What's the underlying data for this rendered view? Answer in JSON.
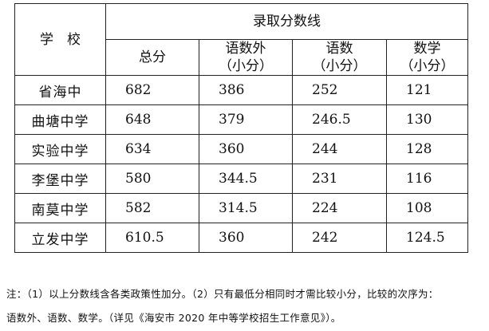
{
  "table": {
    "school_header": "学　校",
    "group_header": "录取分数线",
    "columns": [
      "总分",
      "语数外\n（小分）",
      "语数\n（小分）",
      "数学\n（小分）"
    ],
    "rows": [
      {
        "school": "省海中",
        "values": [
          "682",
          "386",
          "252",
          "121"
        ]
      },
      {
        "school": "曲塘中学",
        "values": [
          "648",
          "379",
          "246.5",
          "130"
        ]
      },
      {
        "school": "实验中学",
        "values": [
          "634",
          "360",
          "244",
          "128"
        ]
      },
      {
        "school": "李堡中学",
        "values": [
          "580",
          "344.5",
          "231",
          "116"
        ]
      },
      {
        "school": "南莫中学",
        "values": [
          "582",
          "314.5",
          "224",
          "108"
        ]
      },
      {
        "school": "立发中学",
        "values": [
          "610.5",
          "360",
          "242",
          "124.5"
        ]
      }
    ]
  },
  "note": {
    "line1": "注：（1）以上分数线含各类政策性加分。（2）只有最低分相同时才需比较小分，比较的次序为：",
    "line2": "语数外、语数、数学。（详见《海安市 2020 年中等学校招生工作意见》）。"
  }
}
